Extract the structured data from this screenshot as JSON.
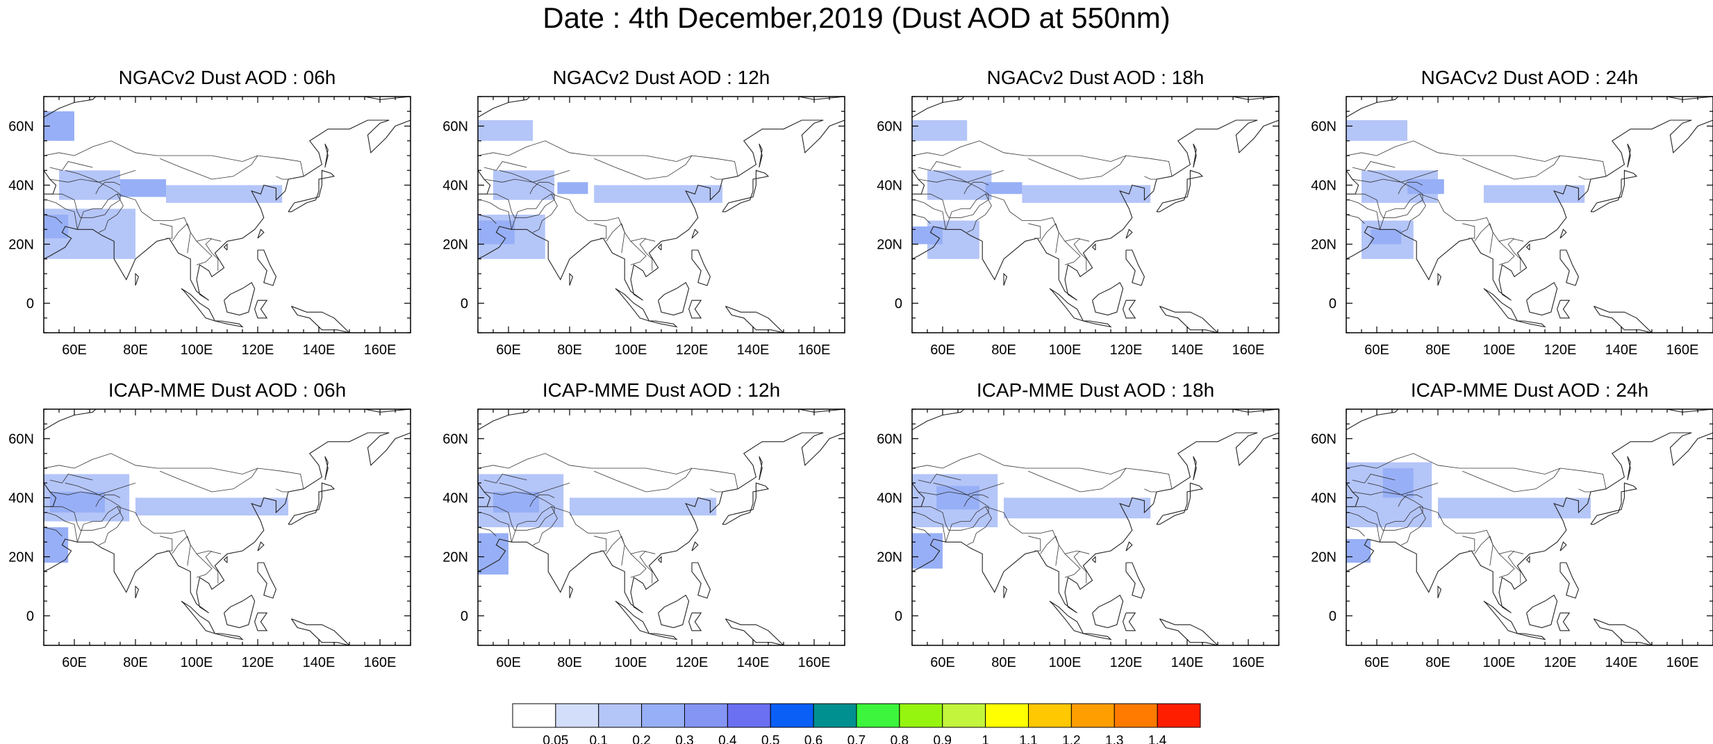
{
  "title": "Date : 4th December,2019 (Dust AOD at 550nm)",
  "panel_titles": [
    "NGACv2 Dust AOD : 06h",
    "NGACv2 Dust AOD : 12h",
    "NGACv2 Dust AOD : 18h",
    "NGACv2 Dust AOD : 24h",
    "ICAP-MME Dust AOD : 06h",
    "ICAP-MME Dust AOD : 12h",
    "ICAP-MME Dust AOD : 18h",
    "ICAP-MME Dust AOD : 24h"
  ],
  "chart_data": {
    "type": "heatmap",
    "title": "Date : 4th December,2019 (Dust AOD at 550nm)",
    "grid": false,
    "panels": [
      {
        "model": "NGACv2",
        "hour": "06h",
        "title": "NGACv2 Dust AOD : 06h"
      },
      {
        "model": "NGACv2",
        "hour": "12h",
        "title": "NGACv2 Dust AOD : 12h"
      },
      {
        "model": "NGACv2",
        "hour": "18h",
        "title": "NGACv2 Dust AOD : 18h"
      },
      {
        "model": "NGACv2",
        "hour": "24h",
        "title": "NGACv2 Dust AOD : 24h"
      },
      {
        "model": "ICAP-MME",
        "hour": "06h",
        "title": "ICAP-MME Dust AOD : 06h"
      },
      {
        "model": "ICAP-MME",
        "hour": "12h",
        "title": "ICAP-MME Dust AOD : 12h"
      },
      {
        "model": "ICAP-MME",
        "hour": "18h",
        "title": "ICAP-MME Dust AOD : 18h"
      },
      {
        "model": "ICAP-MME",
        "hour": "24h",
        "title": "ICAP-MME Dust AOD : 24h"
      }
    ],
    "x_range": [
      50,
      170
    ],
    "y_range": [
      -10,
      70
    ],
    "x_ticks": [
      60,
      80,
      100,
      120,
      140,
      160
    ],
    "x_tick_labels": [
      "60E",
      "80E",
      "100E",
      "120E",
      "140E",
      "160E"
    ],
    "y_ticks": [
      0,
      20,
      40,
      60
    ],
    "y_tick_labels": [
      "0",
      "20N",
      "40N",
      "60N"
    ],
    "colorbar": {
      "labels": [
        "0.05",
        "0.1",
        "0.2",
        "0.3",
        "0.4",
        "0.5",
        "0.6",
        "0.7",
        "0.8",
        "0.9",
        "1",
        "1.1",
        "1.2",
        "1.3",
        "1.4"
      ],
      "colors": [
        "#ffffff",
        "#d3defa",
        "#b4c5f8",
        "#97aff6",
        "#8595f4",
        "#6b6ff2",
        "#0a5ff7",
        "#009090",
        "#3cf53c",
        "#96f50f",
        "#c2f53c",
        "#ffff00",
        "#ffc800",
        "#ff9e00",
        "#ff7b00",
        "#ff1e00"
      ]
    },
    "plumes": [
      [
        {
          "lon": [
            50,
            60
          ],
          "lat": [
            55,
            65
          ],
          "aod": 0.2
        },
        {
          "lon": [
            50,
            80
          ],
          "lat": [
            15,
            32
          ],
          "aod": 0.1
        },
        {
          "lon": [
            55,
            75
          ],
          "lat": [
            35,
            45
          ],
          "aod": 0.1
        },
        {
          "lon": [
            75,
            90
          ],
          "lat": [
            36,
            42
          ],
          "aod": 0.2
        },
        {
          "lon": [
            90,
            128
          ],
          "lat": [
            34,
            40
          ],
          "aod": 0.1
        },
        {
          "lon": [
            50,
            58
          ],
          "lat": [
            22,
            30
          ],
          "aod": 0.2
        }
      ],
      [
        {
          "lon": [
            50,
            68
          ],
          "lat": [
            55,
            62
          ],
          "aod": 0.1
        },
        {
          "lon": [
            50,
            72
          ],
          "lat": [
            15,
            30
          ],
          "aod": 0.1
        },
        {
          "lon": [
            55,
            75
          ],
          "lat": [
            35,
            45
          ],
          "aod": 0.1
        },
        {
          "lon": [
            76,
            86
          ],
          "lat": [
            37,
            41
          ],
          "aod": 0.2
        },
        {
          "lon": [
            88,
            130
          ],
          "lat": [
            34,
            40
          ],
          "aod": 0.1
        },
        {
          "lon": [
            50,
            62
          ],
          "lat": [
            20,
            28
          ],
          "aod": 0.2
        }
      ],
      [
        {
          "lon": [
            50,
            68
          ],
          "lat": [
            55,
            62
          ],
          "aod": 0.1
        },
        {
          "lon": [
            55,
            72
          ],
          "lat": [
            15,
            28
          ],
          "aod": 0.1
        },
        {
          "lon": [
            55,
            76
          ],
          "lat": [
            35,
            45
          ],
          "aod": 0.1
        },
        {
          "lon": [
            74,
            86
          ],
          "lat": [
            37,
            41
          ],
          "aod": 0.2
        },
        {
          "lon": [
            86,
            128
          ],
          "lat": [
            34,
            40
          ],
          "aod": 0.1
        },
        {
          "lon": [
            50,
            60
          ],
          "lat": [
            20,
            26
          ],
          "aod": 0.2
        }
      ],
      [
        {
          "lon": [
            50,
            70
          ],
          "lat": [
            55,
            62
          ],
          "aod": 0.1
        },
        {
          "lon": [
            55,
            72
          ],
          "lat": [
            15,
            28
          ],
          "aod": 0.1
        },
        {
          "lon": [
            55,
            80
          ],
          "lat": [
            34,
            45
          ],
          "aod": 0.1
        },
        {
          "lon": [
            70,
            82
          ],
          "lat": [
            37,
            42
          ],
          "aod": 0.2
        },
        {
          "lon": [
            95,
            128
          ],
          "lat": [
            34,
            40
          ],
          "aod": 0.1
        },
        {
          "lon": [
            58,
            68
          ],
          "lat": [
            20,
            25
          ],
          "aod": 0.2
        }
      ],
      [
        {
          "lon": [
            50,
            78
          ],
          "lat": [
            32,
            48
          ],
          "aod": 0.1
        },
        {
          "lon": [
            50,
            58
          ],
          "lat": [
            18,
            30
          ],
          "aod": 0.2
        },
        {
          "lon": [
            52,
            70
          ],
          "lat": [
            35,
            42
          ],
          "aod": 0.2
        },
        {
          "lon": [
            80,
            130
          ],
          "lat": [
            34,
            40
          ],
          "aod": 0.1
        }
      ],
      [
        {
          "lon": [
            50,
            78
          ],
          "lat": [
            30,
            48
          ],
          "aod": 0.1
        },
        {
          "lon": [
            50,
            60
          ],
          "lat": [
            14,
            28
          ],
          "aod": 0.2
        },
        {
          "lon": [
            55,
            70
          ],
          "lat": [
            35,
            42
          ],
          "aod": 0.2
        },
        {
          "lon": [
            80,
            128
          ],
          "lat": [
            34,
            40
          ],
          "aod": 0.1
        }
      ],
      [
        {
          "lon": [
            50,
            78
          ],
          "lat": [
            30,
            48
          ],
          "aod": 0.1
        },
        {
          "lon": [
            50,
            60
          ],
          "lat": [
            16,
            28
          ],
          "aod": 0.2
        },
        {
          "lon": [
            58,
            72
          ],
          "lat": [
            36,
            44
          ],
          "aod": 0.2
        },
        {
          "lon": [
            80,
            128
          ],
          "lat": [
            33,
            40
          ],
          "aod": 0.1
        }
      ],
      [
        {
          "lon": [
            50,
            78
          ],
          "lat": [
            30,
            52
          ],
          "aod": 0.1
        },
        {
          "lon": [
            50,
            58
          ],
          "lat": [
            18,
            26
          ],
          "aod": 0.2
        },
        {
          "lon": [
            62,
            72
          ],
          "lat": [
            40,
            50
          ],
          "aod": 0.2
        },
        {
          "lon": [
            80,
            130
          ],
          "lat": [
            33,
            40
          ],
          "aod": 0.1
        }
      ]
    ]
  }
}
